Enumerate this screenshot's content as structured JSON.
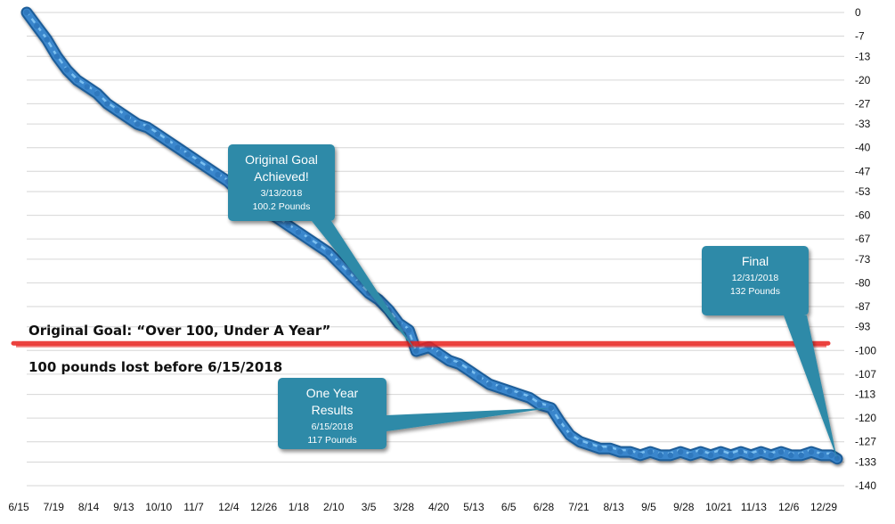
{
  "chart_data": {
    "type": "line",
    "x_start": "6/15/2017",
    "x_end": "12/31/2018",
    "x_tick_labels": [
      "6/15",
      "7/19",
      "8/14",
      "9/13",
      "10/10",
      "11/7",
      "12/4",
      "12/26",
      "1/18",
      "2/10",
      "3/5",
      "3/28",
      "4/20",
      "5/13",
      "6/5",
      "6/28",
      "7/21",
      "8/13",
      "9/5",
      "9/28",
      "10/21",
      "11/13",
      "12/6",
      "12/29"
    ],
    "y_tick_values": [
      0,
      -7,
      -13,
      -20,
      -27,
      -33,
      -40,
      -47,
      -53,
      -60,
      -67,
      -73,
      -80,
      -87,
      -93,
      -100,
      -107,
      -113,
      -120,
      -127,
      -133,
      -140
    ],
    "ylim": [
      -140,
      0
    ],
    "y_axis_side": "right",
    "grid": true,
    "series_color": "#3a86cc",
    "goal_line": {
      "value": -100,
      "color": "#e8211d"
    },
    "series": [
      {
        "points": [
          [
            "6/15/2017",
            0
          ],
          [
            "6/22/2017",
            -4
          ],
          [
            "6/29/2017",
            -8
          ],
          [
            "7/6/2017",
            -13
          ],
          [
            "7/13/2017",
            -17
          ],
          [
            "7/20/2017",
            -20
          ],
          [
            "7/27/2017",
            -22
          ],
          [
            "8/3/2017",
            -24
          ],
          [
            "8/10/2017",
            -27
          ],
          [
            "8/17/2017",
            -29
          ],
          [
            "8/24/2017",
            -31
          ],
          [
            "8/31/2017",
            -33
          ],
          [
            "9/7/2017",
            -34
          ],
          [
            "9/14/2017",
            -36
          ],
          [
            "9/21/2017",
            -38
          ],
          [
            "9/28/2017",
            -40
          ],
          [
            "10/5/2017",
            -42
          ],
          [
            "10/12/2017",
            -44
          ],
          [
            "10/19/2017",
            -46
          ],
          [
            "10/26/2017",
            -48
          ],
          [
            "11/2/2017",
            -50
          ],
          [
            "11/9/2017",
            -53
          ],
          [
            "11/16/2017",
            -55
          ],
          [
            "11/23/2017",
            -57
          ],
          [
            "11/30/2017",
            -59
          ],
          [
            "12/7/2017",
            -61
          ],
          [
            "12/14/2017",
            -63
          ],
          [
            "12/21/2017",
            -65
          ],
          [
            "12/28/2017",
            -67
          ],
          [
            "1/4/2018",
            -69
          ],
          [
            "1/11/2018",
            -71
          ],
          [
            "1/18/2018",
            -74
          ],
          [
            "1/25/2018",
            -77
          ],
          [
            "2/1/2018",
            -80
          ],
          [
            "2/8/2018",
            -83
          ],
          [
            "2/15/2018",
            -85
          ],
          [
            "2/22/2018",
            -88
          ],
          [
            "3/1/2018",
            -92
          ],
          [
            "3/8/2018",
            -94
          ],
          [
            "3/13/2018",
            -100.2
          ],
          [
            "3/22/2018",
            -99
          ],
          [
            "3/29/2018",
            -101
          ],
          [
            "4/5/2018",
            -103
          ],
          [
            "4/12/2018",
            -104
          ],
          [
            "4/19/2018",
            -106
          ],
          [
            "4/26/2018",
            -108
          ],
          [
            "5/3/2018",
            -110
          ],
          [
            "5/10/2018",
            -111
          ],
          [
            "5/17/2018",
            -112
          ],
          [
            "5/24/2018",
            -113
          ],
          [
            "5/31/2018",
            -114
          ],
          [
            "6/7/2018",
            -116
          ],
          [
            "6/15/2018",
            -117
          ],
          [
            "6/21/2018",
            -121
          ],
          [
            "6/28/2018",
            -125
          ],
          [
            "7/5/2018",
            -127
          ],
          [
            "7/12/2018",
            -128
          ],
          [
            "7/19/2018",
            -129
          ],
          [
            "7/26/2018",
            -129
          ],
          [
            "8/2/2018",
            -130
          ],
          [
            "8/9/2018",
            -130
          ],
          [
            "8/16/2018",
            -131
          ],
          [
            "8/23/2018",
            -130
          ],
          [
            "8/30/2018",
            -131
          ],
          [
            "9/6/2018",
            -131
          ],
          [
            "9/13/2018",
            -130
          ],
          [
            "9/20/2018",
            -131
          ],
          [
            "9/27/2018",
            -130
          ],
          [
            "10/4/2018",
            -131
          ],
          [
            "10/11/2018",
            -130
          ],
          [
            "10/18/2018",
            -131
          ],
          [
            "10/25/2018",
            -130
          ],
          [
            "11/1/2018",
            -131
          ],
          [
            "11/8/2018",
            -130
          ],
          [
            "11/15/2018",
            -131
          ],
          [
            "11/22/2018",
            -130
          ],
          [
            "11/29/2018",
            -131
          ],
          [
            "12/6/2018",
            -131
          ],
          [
            "12/13/2018",
            -130
          ],
          [
            "12/20/2018",
            -131
          ],
          [
            "12/27/2018",
            -131
          ],
          [
            "12/31/2018",
            -132
          ]
        ]
      }
    ],
    "annotations": {
      "goal_title": "Original Goal: “Over 100, Under A Year”",
      "goal_subtitle": "100 pounds lost before 6/15/2018",
      "callouts": [
        {
          "id": "achieved",
          "title_lines": [
            "Original Goal",
            "Achieved!"
          ],
          "date": "3/13/2018",
          "detail": "100.2 Pounds",
          "target_date": "3/13/2018",
          "target_value": -100.2
        },
        {
          "id": "one-year",
          "title_lines": [
            "One Year",
            "Results"
          ],
          "date": "6/15/2018",
          "detail": "117 Pounds",
          "target_date": "6/15/2018",
          "target_value": -117
        },
        {
          "id": "final",
          "title_lines": [
            "Final"
          ],
          "date": "12/31/2018",
          "detail": "132 Pounds",
          "target_date": "12/31/2018",
          "target_value": -132
        }
      ],
      "callout_color": "#2d8aa8"
    }
  }
}
